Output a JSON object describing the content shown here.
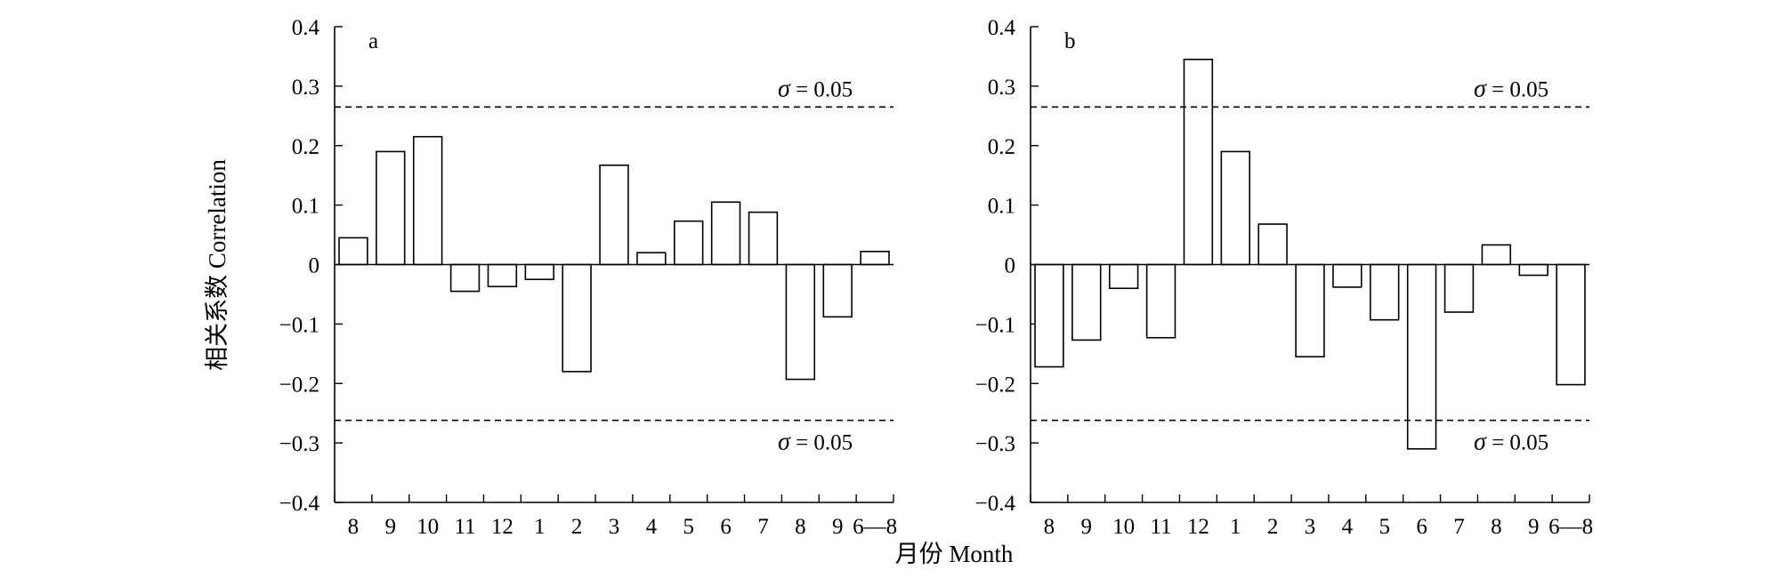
{
  "chart_data": [
    {
      "type": "bar",
      "panel_label": "a",
      "categories": [
        "8",
        "9",
        "10",
        "11",
        "12",
        "1",
        "2",
        "3",
        "4",
        "5",
        "6",
        "7",
        "8",
        "9",
        "6—8"
      ],
      "values": [
        0.045,
        0.19,
        0.215,
        -0.045,
        -0.037,
        -0.025,
        -0.18,
        0.167,
        0.02,
        0.073,
        0.105,
        0.088,
        -0.193,
        -0.088,
        0.022
      ],
      "ylim": [
        -0.4,
        0.4
      ],
      "yticks": [
        0.4,
        0.3,
        0.2,
        0.1,
        0,
        -0.1,
        -0.2,
        -0.3,
        -0.4
      ],
      "ytick_labels": [
        "0.4",
        "0.3",
        "0.2",
        "0.1",
        "0",
        "−0.1",
        "−0.2",
        "−0.3",
        "−0.4"
      ],
      "significance": {
        "upper": 0.265,
        "lower": -0.262,
        "symbol": "σ",
        "label_text": " = 0.05"
      }
    },
    {
      "type": "bar",
      "panel_label": "b",
      "categories": [
        "8",
        "9",
        "10",
        "11",
        "12",
        "1",
        "2",
        "3",
        "4",
        "5",
        "6",
        "7",
        "8",
        "9",
        "6—8"
      ],
      "values": [
        -0.172,
        -0.127,
        -0.04,
        -0.123,
        0.345,
        0.19,
        0.068,
        -0.155,
        -0.038,
        -0.093,
        -0.31,
        -0.08,
        0.033,
        -0.018,
        -0.202
      ],
      "ylim": [
        -0.4,
        0.4
      ],
      "yticks": [
        0.4,
        0.3,
        0.2,
        0.1,
        0,
        -0.1,
        -0.2,
        -0.3,
        -0.4
      ],
      "ytick_labels": [
        "0.4",
        "0.3",
        "0.2",
        "0.1",
        "0",
        "−0.1",
        "−0.2",
        "−0.3",
        "−0.4"
      ],
      "significance": {
        "upper": 0.265,
        "lower": -0.262,
        "symbol": "σ",
        "label_text": " = 0.05"
      }
    }
  ],
  "ylabel": "相关系数 Correlation",
  "xlabel": "月份 Month"
}
